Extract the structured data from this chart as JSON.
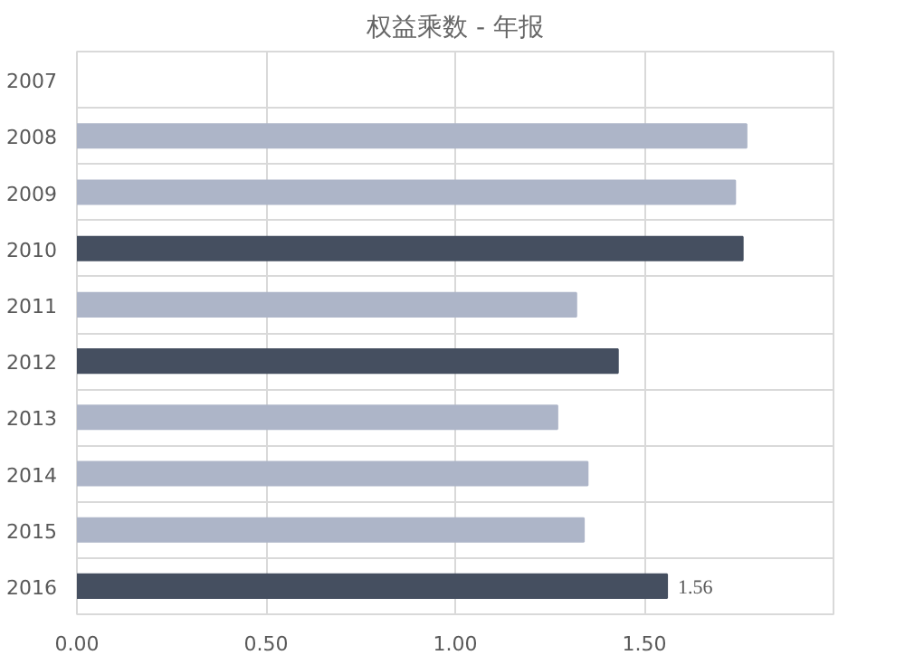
{
  "chart_data": {
    "type": "bar",
    "orientation": "horizontal",
    "title": "权益乘数 - 年报",
    "categories": [
      "2007",
      "2008",
      "2009",
      "2010",
      "2011",
      "2012",
      "2013",
      "2014",
      "2015",
      "2016"
    ],
    "values": [
      null,
      1.77,
      1.74,
      1.76,
      1.32,
      1.43,
      1.27,
      1.35,
      1.34,
      1.56
    ],
    "colors": [
      "#adb5c8",
      "#adb5c8",
      "#adb5c8",
      "#454f60",
      "#adb5c8",
      "#454f60",
      "#adb5c8",
      "#adb5c8",
      "#adb5c8",
      "#454f60"
    ],
    "value_labels": [
      null,
      null,
      null,
      null,
      null,
      null,
      null,
      null,
      null,
      "1.56"
    ],
    "xlim": [
      0,
      2
    ],
    "xticks": [
      {
        "value": 0,
        "label": "0.00"
      },
      {
        "value": 0.5,
        "label": "0.50"
      },
      {
        "value": 1,
        "label": "1.00"
      },
      {
        "value": 1.5,
        "label": "1.50"
      }
    ],
    "grid": true
  }
}
